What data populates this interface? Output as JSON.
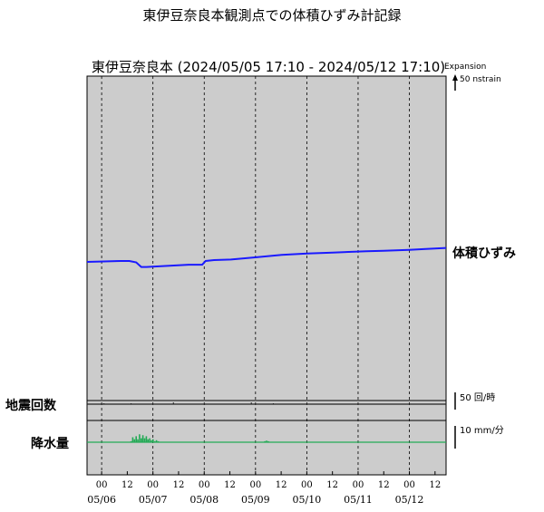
{
  "page_title": "東伊豆奈良本観測点での体積ひずみ計記録",
  "plot_title": "東伊豆奈良本 (2024/05/05 17:10 - 2024/05/12 17:10)",
  "colors": {
    "panel_bg": "#cccccc",
    "strain_line": "#1a1aff",
    "rain_line": "#22aa55",
    "quake_line": "#222222"
  },
  "chart_data": {
    "type": "line",
    "time_range": [
      "2024/05/05 17:10",
      "2024/05/12 17:10"
    ],
    "x_tick_labels": [
      "00",
      "12",
      "00",
      "12",
      "00",
      "12",
      "00",
      "12",
      "00",
      "12",
      "00",
      "12",
      "00",
      "12"
    ],
    "x_date_labels": [
      "05/06",
      "05/07",
      "05/08",
      "05/09",
      "05/10",
      "05/11",
      "05/12"
    ],
    "grid": "dashed vertical at 00:00 each day",
    "series": [
      {
        "name": "体積ひずみ",
        "unit": "nstrain",
        "scale_label": "50 nstrain",
        "scale_direction": "Expansion",
        "x_hours": [
          0,
          20,
          40,
          50,
          58,
          64,
          70,
          80,
          100,
          120,
          132,
          136,
          140,
          150,
          170,
          200,
          230,
          260,
          290,
          316,
          330,
          350,
          380,
          400,
          424
        ],
        "y_values": [
          0,
          0.5,
          1,
          1,
          -0.5,
          -5.5,
          -5.5,
          -5,
          -4,
          -3,
          -3,
          -3,
          1,
          2,
          2.5,
          5,
          7.5,
          9,
          10,
          11,
          11.5,
          12,
          13,
          14,
          15
        ]
      },
      {
        "name": "地震回数",
        "unit": "回/時",
        "scale_label": "50 回/時",
        "x_hours": [
          20,
          52,
          102,
          194,
          220
        ],
        "y_values": [
          1,
          1,
          2,
          2,
          1
        ]
      },
      {
        "name": "降水量",
        "unit": "mm/分",
        "scale_label": "10 mm/分",
        "x_hours": [
          52,
          54,
          56,
          58,
          60,
          62,
          64,
          66,
          68,
          70,
          72,
          74,
          76,
          78,
          80,
          82,
          84,
          210,
          212,
          214
        ],
        "y_values": [
          0.5,
          2.5,
          1.5,
          3,
          1.5,
          4,
          2,
          3.5,
          2,
          3,
          1.5,
          2,
          1,
          1.5,
          0.5,
          1,
          0.5,
          0.5,
          0.8,
          0.5
        ]
      }
    ]
  },
  "labels": {
    "strain": "体積ひずみ",
    "quake": "地震回数",
    "rain": "降水量",
    "expansion": "Expansion",
    "strain_scale": "50 nstrain",
    "quake_scale": "50 回/時",
    "rain_scale": "10 mm/分"
  }
}
